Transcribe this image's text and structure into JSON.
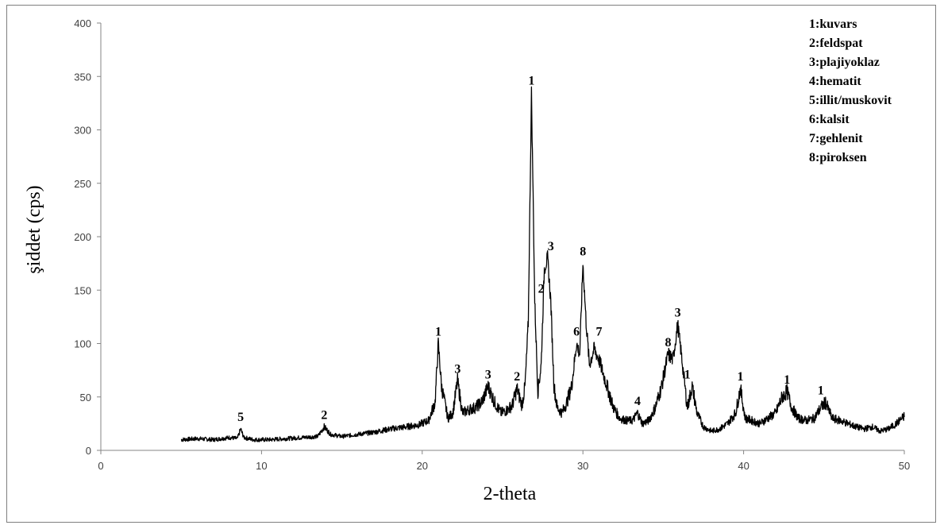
{
  "chart_data": {
    "type": "line",
    "xlabel": "2-theta",
    "ylabel": "şiddet (cps)",
    "xlim": [
      0,
      50
    ],
    "ylim": [
      0,
      400
    ],
    "x_ticks": [
      0,
      10,
      20,
      30,
      40,
      50
    ],
    "y_ticks": [
      0,
      50,
      100,
      150,
      200,
      250,
      300,
      350,
      400
    ],
    "grid": false,
    "legend_position": "top-right",
    "line_color": "#000000",
    "series": [
      {
        "x": [
          5.0,
          6.0,
          7.0,
          8.0,
          8.5,
          8.7,
          8.9,
          9.5,
          10.5,
          11.5,
          12.5,
          13.5,
          13.9,
          14.3,
          15.0,
          16.0,
          17.0,
          18.0,
          19.0,
          19.8,
          20.4,
          20.8,
          21.0,
          21.2,
          21.6,
          21.9,
          22.2,
          22.5,
          22.9,
          23.3,
          23.7,
          24.1,
          24.5,
          24.9,
          25.3,
          25.6,
          25.9,
          26.2,
          26.4,
          26.6,
          26.8,
          27.0,
          27.2,
          27.4,
          27.6,
          27.8,
          28.0,
          28.2,
          28.4,
          28.7,
          29.0,
          29.3,
          29.6,
          29.8,
          30.0,
          30.2,
          30.4,
          30.7,
          31.0,
          31.3,
          31.6,
          31.9,
          32.3,
          32.7,
          33.1,
          33.4,
          33.7,
          34.1,
          34.5,
          34.9,
          35.3,
          35.6,
          35.9,
          36.2,
          36.5,
          36.8,
          37.1,
          37.5,
          38.0,
          38.5,
          39.0,
          39.5,
          39.8,
          40.1,
          40.5,
          41.0,
          41.5,
          42.0,
          42.4,
          42.7,
          43.0,
          43.4,
          43.9,
          44.4,
          44.8,
          45.1,
          45.5,
          46.0,
          46.5,
          47.0,
          47.5,
          48.0,
          48.5,
          49.0,
          49.5,
          50.0
        ],
        "y": [
          10,
          11,
          10,
          12,
          11,
          20,
          12,
          10,
          10,
          11,
          12,
          13,
          22,
          15,
          13,
          15,
          17,
          20,
          22,
          24,
          28,
          45,
          100,
          60,
          30,
          35,
          65,
          35,
          38,
          40,
          45,
          60,
          45,
          35,
          38,
          42,
          58,
          42,
          60,
          120,
          335,
          140,
          55,
          80,
          170,
          180,
          140,
          60,
          40,
          35,
          45,
          60,
          100,
          90,
          175,
          120,
          80,
          95,
          85,
          70,
          55,
          40,
          30,
          28,
          28,
          35,
          25,
          28,
          40,
          60,
          90,
          85,
          118,
          80,
          40,
          60,
          35,
          22,
          18,
          20,
          25,
          35,
          58,
          30,
          28,
          25,
          30,
          35,
          50,
          55,
          40,
          30,
          28,
          30,
          40,
          45,
          30,
          28,
          25,
          22,
          20,
          22,
          18,
          20,
          25,
          32
        ]
      }
    ],
    "annotations": [
      {
        "text": "5",
        "x": 8.7,
        "y": 20
      },
      {
        "text": "2",
        "x": 13.9,
        "y": 22
      },
      {
        "text": "1",
        "x": 21.0,
        "y": 100
      },
      {
        "text": "3",
        "x": 22.2,
        "y": 65
      },
      {
        "text": "3",
        "x": 24.1,
        "y": 60
      },
      {
        "text": "2",
        "x": 25.9,
        "y": 58
      },
      {
        "text": "1",
        "x": 26.8,
        "y": 335
      },
      {
        "text": "2",
        "x": 27.4,
        "y": 140
      },
      {
        "text": "3",
        "x": 28.0,
        "y": 180
      },
      {
        "text": "6",
        "x": 29.6,
        "y": 100
      },
      {
        "text": "8",
        "x": 30.0,
        "y": 175
      },
      {
        "text": "7",
        "x": 31.0,
        "y": 100
      },
      {
        "text": "4",
        "x": 33.4,
        "y": 35
      },
      {
        "text": "8",
        "x": 35.3,
        "y": 90
      },
      {
        "text": "3",
        "x": 35.9,
        "y": 118
      },
      {
        "text": "1",
        "x": 36.5,
        "y": 60
      },
      {
        "text": "1",
        "x": 39.8,
        "y": 58
      },
      {
        "text": "1",
        "x": 42.7,
        "y": 55
      },
      {
        "text": "1",
        "x": 44.8,
        "y": 45
      }
    ],
    "legend": [
      "1:kuvars",
      "2:feldspat",
      "3:plajiyoklaz",
      "4:hematit",
      "5:illit/muskovit",
      "6:kalsit",
      "7:gehlenit",
      "8:piroksen"
    ]
  }
}
